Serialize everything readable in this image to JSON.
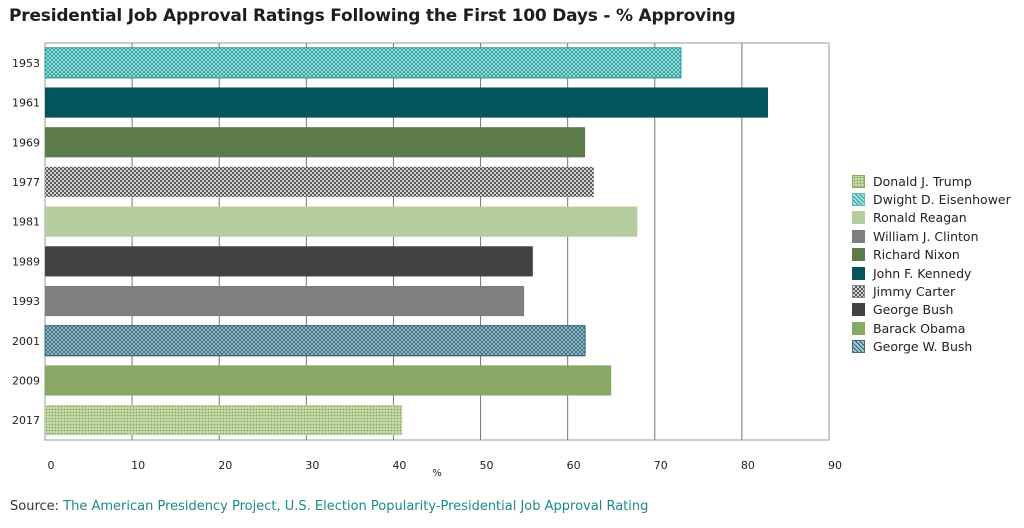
{
  "title": "Presidential Job Approval Ratings Following the First 100 Days - % Approving",
  "source": {
    "prefix": "Source: ",
    "link_text": "The American Presidency Project, U.S. Election Popularity-Presidential Job Approval Rating"
  },
  "chart_data": {
    "type": "bar",
    "orientation": "horizontal",
    "categories": [
      "1953",
      "1961",
      "1969",
      "1977",
      "1981",
      "1989",
      "1993",
      "2001",
      "2009",
      "2017"
    ],
    "values": [
      73,
      83,
      62,
      63,
      68,
      56,
      55,
      62,
      65,
      41
    ],
    "bar_presidents": [
      "Dwight D. Eisenhower",
      "John F. Kennedy",
      "Richard Nixon",
      "Jimmy Carter",
      "Ronald Reagan",
      "George Bush",
      "William J. Clinton",
      "George W. Bush",
      "Barack Obama",
      "Donald J. Trump"
    ],
    "xlabel": "%",
    "ylabel": "",
    "xlim": [
      0,
      90
    ],
    "xticks": [
      0,
      10,
      20,
      30,
      40,
      50,
      60,
      70,
      80,
      90
    ],
    "grid": "vertical",
    "legend_position": "right",
    "legend": [
      {
        "name": "Donald J. Trump",
        "color": "#8aaa63",
        "pattern": "dots-green"
      },
      {
        "name": "Dwight D. Eisenhower",
        "color": "#5bbfbf",
        "pattern": "cross-teal"
      },
      {
        "name": "Ronald Reagan",
        "color": "#b5cc9f",
        "pattern": "solid"
      },
      {
        "name": "William J. Clinton",
        "color": "#7f7f7f",
        "pattern": "solid"
      },
      {
        "name": "Richard Nixon",
        "color": "#5d7a4a",
        "pattern": "solid"
      },
      {
        "name": "John F. Kennedy",
        "color": "#02555b",
        "pattern": "solid"
      },
      {
        "name": "Jimmy Carter",
        "color": "#8a8a8a",
        "pattern": "check-gray"
      },
      {
        "name": "George Bush",
        "color": "#424242",
        "pattern": "solid"
      },
      {
        "name": "Barack Obama",
        "color": "#88a865",
        "pattern": "solid"
      },
      {
        "name": "George W. Bush",
        "color": "#3d6f80",
        "pattern": "cross-blue"
      }
    ]
  }
}
